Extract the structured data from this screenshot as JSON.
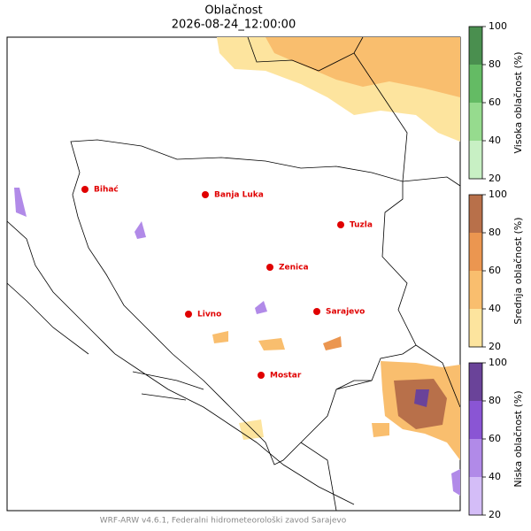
{
  "header": {
    "title": "Oblačnost",
    "subtitle": "2026-08-24_12:00:00"
  },
  "cities": [
    "Bihać",
    "Banja Luka",
    "Tuzla",
    "Zenica",
    "Livno",
    "Sarajevo",
    "Mostar"
  ],
  "colorbars": [
    {
      "label": "Visoka oblačnost (%)",
      "lim": [
        20,
        100
      ],
      "ticks": [
        20,
        40,
        60,
        80,
        100
      ],
      "colors": [
        "#c8f0c4",
        "#96db8e",
        "#64bb64",
        "#4a8f4f"
      ]
    },
    {
      "label": "Srednja oblačnost (%)",
      "lim": [
        20,
        100
      ],
      "ticks": [
        20,
        40,
        60,
        80,
        100
      ],
      "colors": [
        "#fde49e",
        "#f9be6e",
        "#eb9650",
        "#b8704a"
      ]
    },
    {
      "label": "Niska oblačnost (%)",
      "lim": [
        20,
        100
      ],
      "ticks": [
        20,
        40,
        60,
        80,
        100
      ],
      "colors": [
        "#d4bdf7",
        "#b18ae8",
        "#8a55d4",
        "#6a4399"
      ]
    }
  ],
  "footer": "WRF-ARW v4.6.1, Federalni hidrometeorološki zavod Sarajevo"
}
